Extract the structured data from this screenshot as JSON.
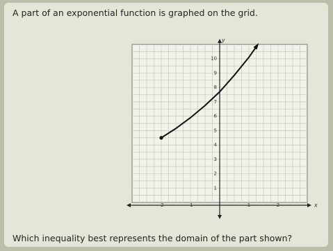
{
  "question": {
    "prompt": "A part of an exponential function is graphed on the grid.",
    "text": "Which inequality best represents the domain of the part shown?"
  },
  "graph": {
    "xlabel": "x",
    "ylabel": "y",
    "xlim": [
      -3,
      3
    ],
    "ylim": [
      0,
      11
    ],
    "xticks": [
      -2,
      -1,
      1,
      2
    ],
    "yticks": [
      1,
      2,
      3,
      4,
      5,
      6,
      7,
      8,
      9,
      10
    ],
    "curve": {
      "x": [
        -2,
        -1.5,
        -1,
        -0.5,
        0,
        0.5,
        1,
        1.3
      ],
      "y": [
        4.5,
        5.15,
        5.9,
        6.75,
        7.7,
        8.85,
        10.1,
        10.97
      ]
    }
  }
}
